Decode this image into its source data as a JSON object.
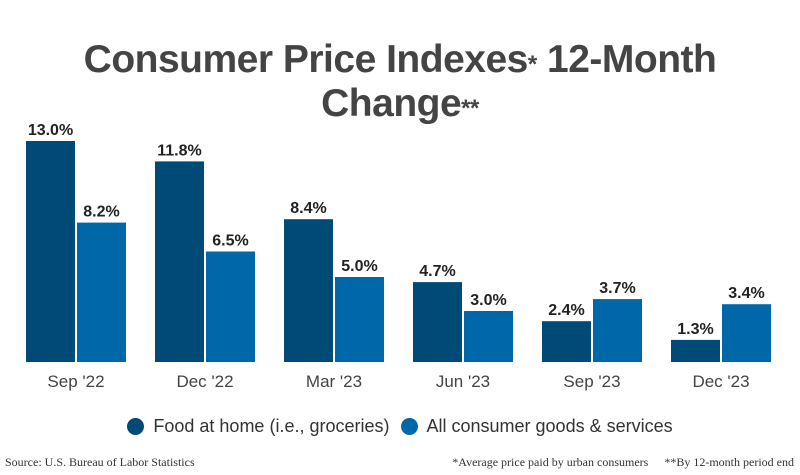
{
  "chart_data": {
    "type": "bar",
    "title": "Consumer Price Indexes",
    "title_mark": "*",
    "title_rest": "12-Month Change",
    "title_rest_mark": "**",
    "categories": [
      "Sep '22",
      "Dec '22",
      "Mar '23",
      "Jun '23",
      "Sep '23",
      "Dec '23"
    ],
    "series": [
      {
        "name": "Food at home (i.e., groceries)",
        "color": "#004a78",
        "values": [
          13.0,
          11.8,
          8.4,
          4.7,
          2.4,
          1.3
        ]
      },
      {
        "name": "All consumer goods & services",
        "color": "#0068a8",
        "values": [
          8.2,
          6.5,
          5.0,
          3.0,
          3.7,
          3.4
        ]
      }
    ],
    "value_suffix": "%",
    "ylim": [
      0,
      13
    ],
    "grid": false,
    "legend_position": "bottom"
  },
  "footer": {
    "source": "Source: U.S. Bureau of Labor Statistics",
    "note1": "*Average price paid by urban consumers",
    "note2": "**By 12-month period end"
  }
}
